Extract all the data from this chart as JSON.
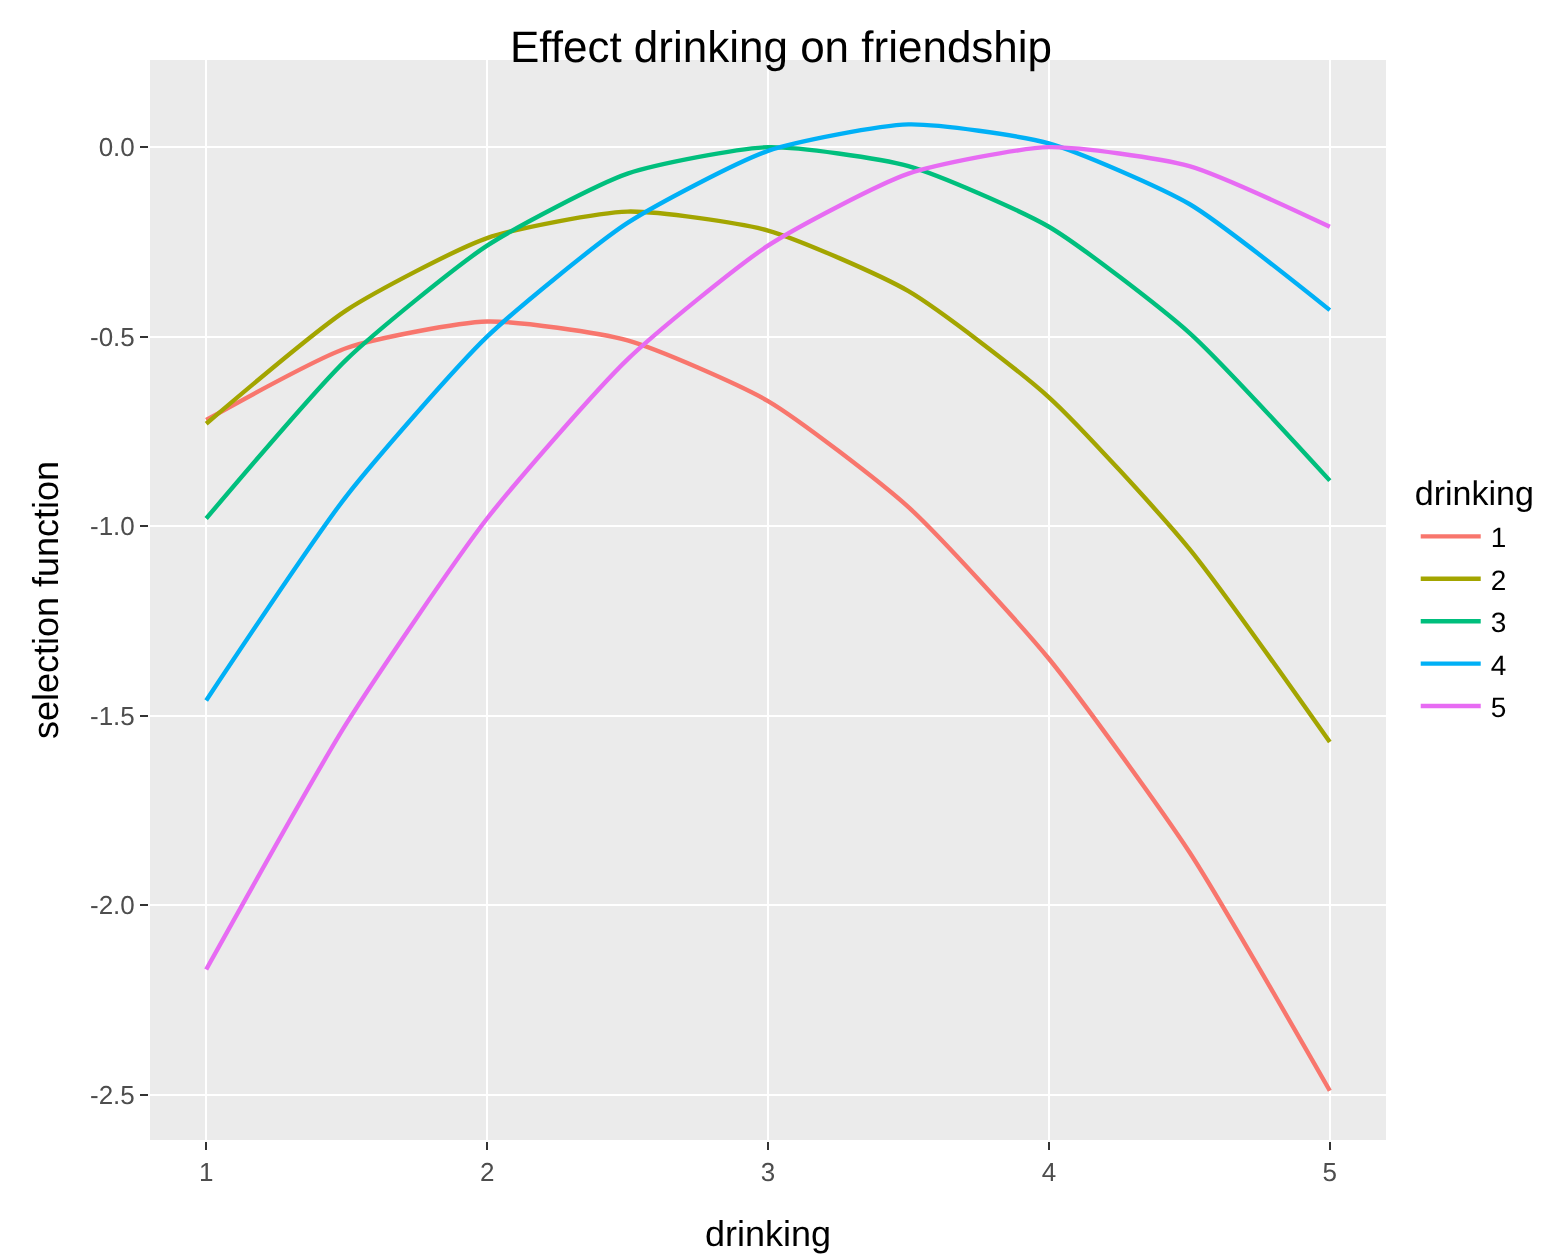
{
  "chart_data": {
    "type": "line",
    "title": "Effect drinking on friendship",
    "xlabel": "drinking",
    "ylabel": "selection function",
    "legend_title": "drinking",
    "x": [
      1,
      1.5,
      2,
      2.5,
      3,
      3.5,
      4,
      4.5,
      5
    ],
    "series": [
      {
        "name": "1",
        "color": "#f8766d",
        "values": [
          -0.72,
          -0.53,
          -0.46,
          -0.51,
          -0.67,
          -0.95,
          -1.35,
          -1.86,
          -2.49
        ]
      },
      {
        "name": "2",
        "color": "#a3a500",
        "values": [
          -0.73,
          -0.43,
          -0.24,
          -0.17,
          -0.22,
          -0.38,
          -0.66,
          -1.06,
          -1.57
        ]
      },
      {
        "name": "3",
        "color": "#00bf7d",
        "values": [
          -0.98,
          -0.56,
          -0.26,
          -0.07,
          0.0,
          -0.05,
          -0.21,
          -0.49,
          -0.88
        ]
      },
      {
        "name": "4",
        "color": "#00b0f6",
        "values": [
          -1.46,
          -0.92,
          -0.5,
          -0.2,
          -0.01,
          0.06,
          0.01,
          -0.15,
          -0.43
        ]
      },
      {
        "name": "5",
        "color": "#e76bf3",
        "values": [
          -2.17,
          -1.52,
          -0.98,
          -0.56,
          -0.26,
          -0.07,
          0.0,
          -0.05,
          -0.21
        ]
      }
    ],
    "xlim": [
      0.8,
      5.2
    ],
    "xticks": [
      1,
      2,
      3,
      4,
      5
    ],
    "ylim": [
      -2.62,
      0.23
    ],
    "yticks": [
      {
        "value": -2.5,
        "label": "-2.5"
      },
      {
        "value": -2,
        "label": "-2.0"
      },
      {
        "value": -1.5,
        "label": "-1.5"
      },
      {
        "value": -1,
        "label": "-1.0"
      },
      {
        "value": -0.5,
        "label": "-0.5"
      },
      {
        "value": 0,
        "label": "0.0"
      }
    ],
    "grid": true,
    "legend": "right",
    "marker": "none",
    "line_style": "solid"
  }
}
